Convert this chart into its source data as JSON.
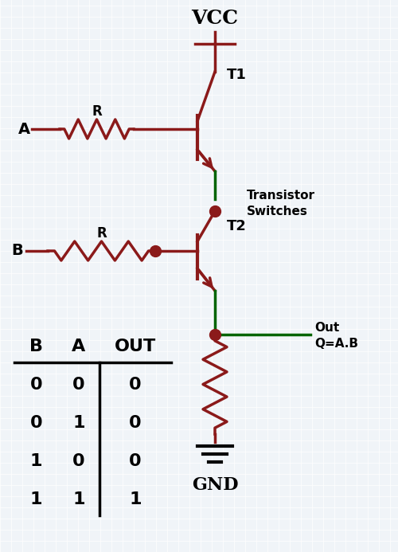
{
  "bg_color": "#f0f4f8",
  "dark_red": "#8B1A1A",
  "green": "#006400",
  "black": "#000000",
  "title": "VCC",
  "gnd_label": "GND",
  "t1_label": "T1",
  "t2_label": "T2",
  "out_label1": "Out",
  "out_label2": "Q=A.B",
  "transistor_switches_label1": "Transistor",
  "transistor_switches_label2": "Switches",
  "r_label": "R",
  "a_label": "A",
  "b_label": "B",
  "truth_table": {
    "headers": [
      "B",
      "A",
      "OUT"
    ],
    "rows": [
      [
        "0",
        "0",
        "0"
      ],
      [
        "0",
        "1",
        "0"
      ],
      [
        "1",
        "0",
        "0"
      ],
      [
        "1",
        "1",
        "1"
      ]
    ]
  },
  "figsize": [
    5.0,
    6.93
  ],
  "dpi": 100
}
